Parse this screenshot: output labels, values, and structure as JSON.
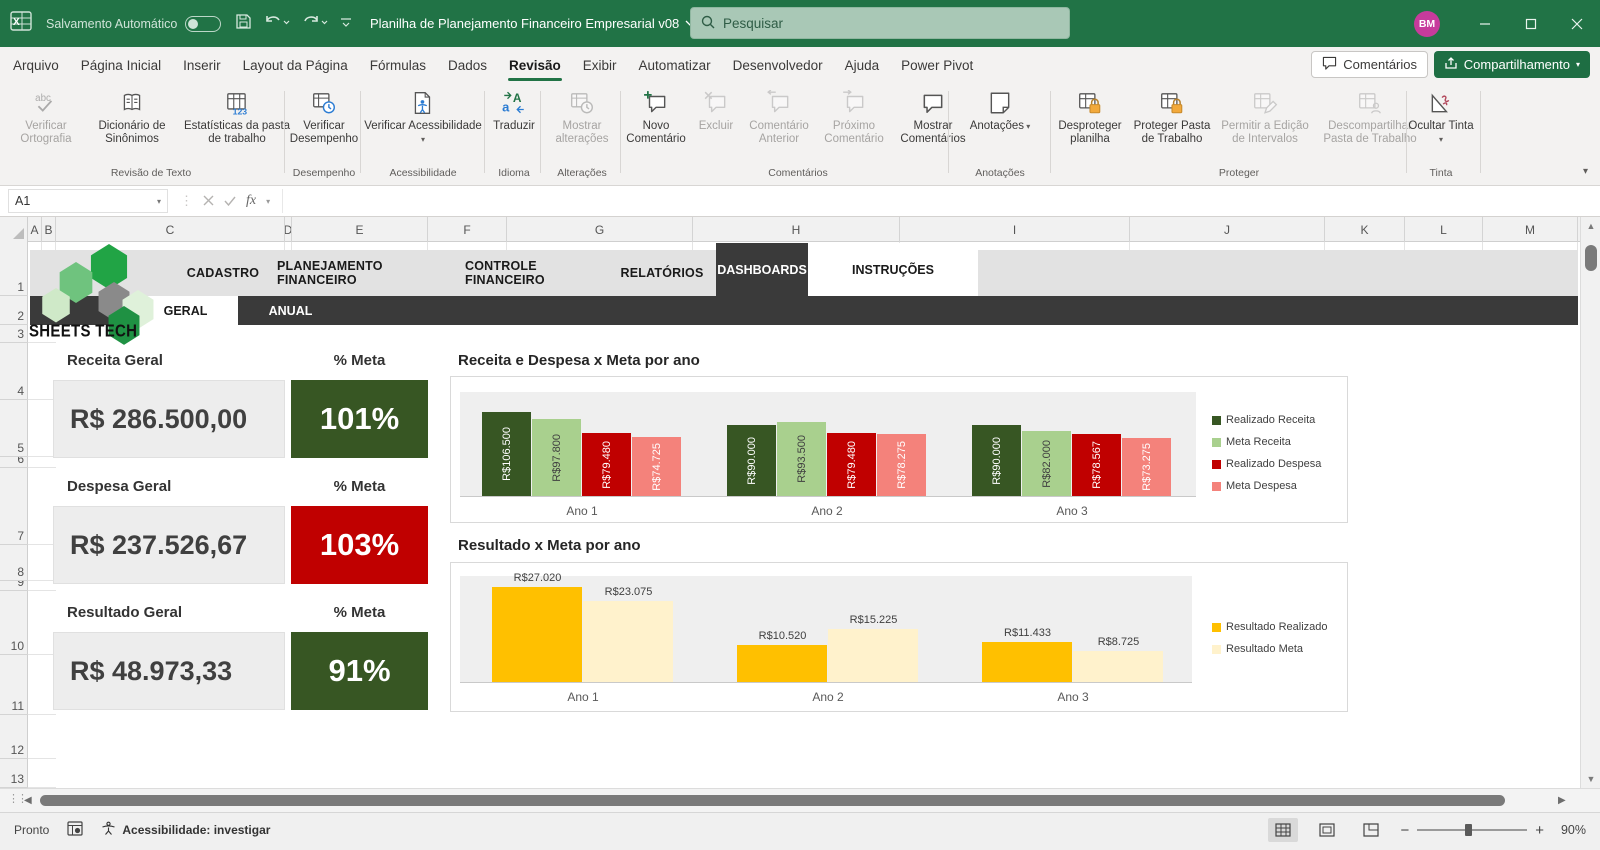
{
  "titlebar": {
    "autosave_label": "Salvamento Automático",
    "doc_title": "Planilha de Planejamento Financeiro Empresarial v08",
    "search_placeholder": "Pesquisar",
    "avatar_initials": "BM"
  },
  "menubar": {
    "tabs": [
      "Arquivo",
      "Página Inicial",
      "Inserir",
      "Layout da Página",
      "Fórmulas",
      "Dados",
      "Revisão",
      "Exibir",
      "Automatizar",
      "Desenvolvedor",
      "Ajuda",
      "Power Pivot"
    ],
    "active_tab": "Revisão",
    "comments_label": "Comentários",
    "share_label": "Compartilhamento"
  },
  "ribbon": {
    "groups": [
      {
        "label": "Revisão de Texto",
        "buttons": [
          {
            "label": "Verificar Ortografia",
            "icon": "spell-check-icon",
            "enabled": false
          },
          {
            "label": "Dicionário de Sinônimos",
            "icon": "thesaurus-icon",
            "enabled": true
          },
          {
            "label": "Estatísticas da pasta de trabalho",
            "icon": "workbook-stats-icon",
            "enabled": true
          }
        ]
      },
      {
        "label": "Desempenho",
        "buttons": [
          {
            "label": "Verificar Desempenho",
            "icon": "performance-icon",
            "enabled": true
          }
        ]
      },
      {
        "label": "Acessibilidade",
        "buttons": [
          {
            "label": "Verificar Acessibilidade",
            "icon": "accessibility-icon",
            "enabled": true,
            "dropdown": true
          }
        ]
      },
      {
        "label": "Idioma",
        "buttons": [
          {
            "label": "Traduzir",
            "icon": "translate-icon",
            "enabled": true
          }
        ]
      },
      {
        "label": "Alterações",
        "buttons": [
          {
            "label": "Mostrar alterações",
            "icon": "show-changes-icon",
            "enabled": false
          }
        ]
      },
      {
        "label": "Comentários",
        "buttons": [
          {
            "label": "Novo Comentário",
            "icon": "new-comment-icon",
            "enabled": true
          },
          {
            "label": "Excluir",
            "icon": "delete-comment-icon",
            "enabled": false
          },
          {
            "label": "Comentário Anterior",
            "icon": "previous-comment-icon",
            "enabled": false
          },
          {
            "label": "Próximo Comentário",
            "icon": "next-comment-icon",
            "enabled": false
          },
          {
            "label": "Mostrar Comentários",
            "icon": "show-comments-icon",
            "enabled": true
          }
        ]
      },
      {
        "label": "Anotações",
        "buttons": [
          {
            "label": "Anotações",
            "icon": "notes-icon",
            "enabled": true,
            "dropdown": true
          }
        ]
      },
      {
        "label": "Proteger",
        "buttons": [
          {
            "label": "Desproteger planilha",
            "icon": "unprotect-sheet-icon",
            "enabled": true
          },
          {
            "label": "Proteger Pasta de Trabalho",
            "icon": "protect-workbook-icon",
            "enabled": true
          },
          {
            "label": "Permitir a Edição de Intervalos",
            "icon": "allow-edit-ranges-icon",
            "enabled": false
          },
          {
            "label": "Descompartilhar Pasta de Trabalho",
            "icon": "unshare-workbook-icon",
            "enabled": false
          }
        ]
      },
      {
        "label": "Tinta",
        "buttons": [
          {
            "label": "Ocultar Tinta",
            "icon": "hide-ink-icon",
            "enabled": true,
            "dropdown": true
          }
        ]
      }
    ]
  },
  "formula_bar": {
    "name_box": "A1",
    "fx_label": "fx"
  },
  "grid": {
    "columns": [
      "A",
      "B",
      "C",
      "D",
      "E",
      "F",
      "G",
      "H",
      "I",
      "J",
      "K",
      "L",
      "M"
    ],
    "rows": [
      "1",
      "2",
      "3",
      "4",
      "5",
      "6",
      "7",
      "8",
      "9",
      "10",
      "11",
      "12",
      "13"
    ]
  },
  "dashboard": {
    "brand": "SHEETS TECH",
    "nav_tabs": [
      "CADASTRO",
      "PLANEJAMENTO FINANCEIRO",
      "CONTROLE FINANCEIRO",
      "RELATÓRIOS",
      "DASHBOARDS",
      "INSTRUÇÕES"
    ],
    "active_nav_tab": "DASHBOARDS",
    "sub_tabs": [
      "GERAL",
      "ANUAL"
    ],
    "active_sub_tab": "GERAL",
    "kpis": [
      {
        "label": "Receita Geral",
        "meta_label": "% Meta",
        "value": "R$ 286.500,00",
        "meta_value": "101%",
        "meta_color": "#375623"
      },
      {
        "label": "Despesa Geral",
        "meta_label": "% Meta",
        "value": "R$ 237.526,67",
        "meta_value": "103%",
        "meta_color": "#C00000"
      },
      {
        "label": "Resultado Geral",
        "meta_label": "% Meta",
        "value": "R$ 48.973,33",
        "meta_value": "91%",
        "meta_color": "#375623"
      }
    ]
  },
  "chart_data": [
    {
      "type": "bar",
      "title": "Receita e Despesa x Meta por ano",
      "categories": [
        "Ano 1",
        "Ano 2",
        "Ano 3"
      ],
      "series": [
        {
          "name": "Realizado Receita",
          "color": "#375623",
          "label_color": "#ffffff",
          "values": [
            106500,
            90000,
            90000
          ],
          "labels": [
            "R$106.500",
            "R$90.000",
            "R$90.000"
          ]
        },
        {
          "name": "Meta Receita",
          "color": "#A9D08E",
          "label_color": "#404040",
          "values": [
            97800,
            93500,
            82000
          ],
          "labels": [
            "R$97.800",
            "R$93.500",
            "R$82.000"
          ]
        },
        {
          "name": "Realizado Despesa",
          "color": "#C00000",
          "label_color": "#ffffff",
          "values": [
            79480,
            79480,
            78567
          ],
          "labels": [
            "R$79.480",
            "R$79.480",
            "R$78.567"
          ]
        },
        {
          "name": "Meta Despesa",
          "color": "#F4827B",
          "label_color": "#ffffff",
          "values": [
            74725,
            78275,
            73275
          ],
          "labels": [
            "R$74.725",
            "R$78.275",
            "R$73.275"
          ]
        }
      ],
      "ylim": [
        0,
        133000
      ],
      "grid": false,
      "legend_position": "right",
      "data_labels": "inside-vertical"
    },
    {
      "type": "bar",
      "title": "Resultado x Meta por ano",
      "categories": [
        "Ano 1",
        "Ano 2",
        "Ano 3"
      ],
      "series": [
        {
          "name": "Resultado Realizado",
          "color": "#FFC000",
          "label_color": "#404040",
          "values": [
            27020,
            10520,
            11433
          ],
          "labels": [
            "R$27.020",
            "R$10.520",
            "R$11.433"
          ]
        },
        {
          "name": "Resultado Meta",
          "color": "#FFF2CC",
          "label_color": "#404040",
          "values": [
            23075,
            15225,
            8725
          ],
          "labels": [
            "R$23.075",
            "R$15.225",
            "R$8.725"
          ]
        }
      ],
      "ylim": [
        0,
        30500
      ],
      "grid": false,
      "legend_position": "right",
      "data_labels": "above"
    }
  ],
  "statusbar": {
    "ready_label": "Pronto",
    "accessibility_label": "Acessibilidade: investigar",
    "zoom_level": "90%"
  }
}
